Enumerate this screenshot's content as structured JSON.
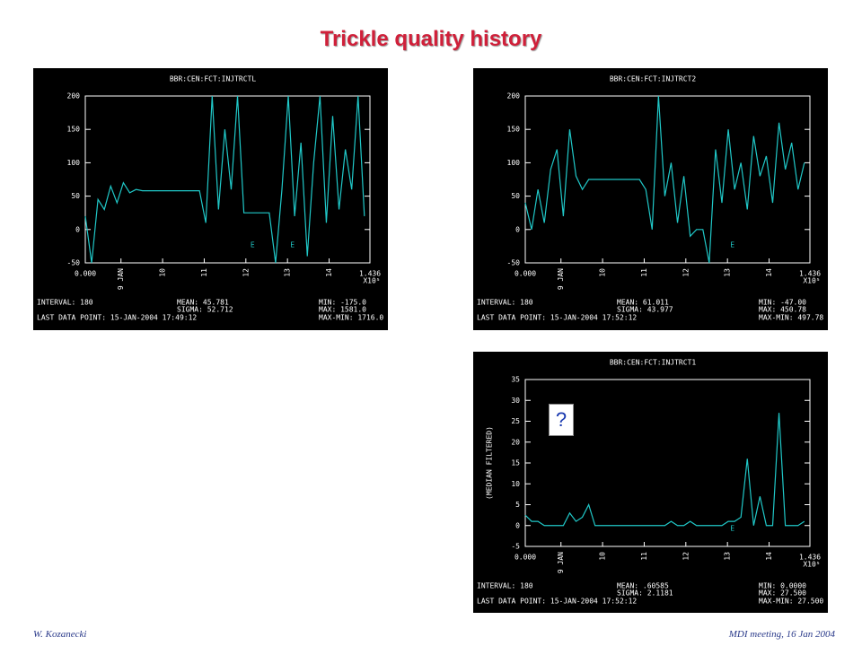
{
  "title": "Trickle quality history",
  "footer_left": "W. Kozanecki",
  "footer_right": "MDI meeting, 16 Jan 2004",
  "chart_data": [
    {
      "type": "line",
      "title": "BBR:CEN:FCT:INJTRCTL",
      "color": "#20c8c8",
      "x": [
        0,
        0.032,
        0.064,
        0.096,
        0.128,
        0.16,
        0.192,
        0.224,
        0.256,
        0.288,
        0.32,
        0.352,
        0.384,
        0.416,
        0.448,
        0.48,
        0.512,
        0.544,
        0.576,
        0.608,
        0.64,
        0.672,
        0.704,
        0.736,
        0.768,
        0.8,
        0.832,
        0.864,
        0.896,
        0.928,
        0.96,
        0.992,
        1.024,
        1.056,
        1.088,
        1.12,
        1.152,
        1.184,
        1.216,
        1.248,
        1.28,
        1.312,
        1.344,
        1.376,
        1.408
      ],
      "values": [
        20,
        -50,
        45,
        30,
        65,
        40,
        70,
        55,
        60,
        58,
        58,
        58,
        58,
        58,
        58,
        58,
        58,
        58,
        58,
        10,
        200,
        30,
        150,
        60,
        200,
        25,
        25,
        25,
        25,
        25,
        -50,
        60,
        200,
        20,
        130,
        -40,
        100,
        200,
        10,
        170,
        30,
        120,
        60,
        200,
        20
      ],
      "xlim": [
        0,
        1.436
      ],
      "ylim": [
        -50,
        200
      ],
      "yticks": [
        -50,
        0,
        50,
        100,
        150,
        200
      ],
      "xticks": [
        {
          "value": 0,
          "label": "0.000"
        },
        {
          "value": 0.18,
          "label": "9 JAN"
        },
        {
          "value": 0.39,
          "label": "10"
        },
        {
          "value": 0.6,
          "label": "11"
        },
        {
          "value": 0.81,
          "label": "12"
        },
        {
          "value": 1.02,
          "label": "13"
        },
        {
          "value": 1.23,
          "label": "14"
        },
        {
          "value": 1.436,
          "label": "1.436"
        }
      ],
      "x_exponent_label": "X10⁵",
      "annotations": [
        "E",
        "E"
      ],
      "stats": [
        "INTERVAL:   180",
        "MEAN: 45.781",
        "MIN: -175.0",
        "SIGMA: 52.712",
        "MAX: 1581.0",
        "LAST DATA POINT:   15-JAN-2004 17:49:12",
        "MAX-MIN: 1716.0"
      ]
    },
    {
      "type": "line",
      "title": "BBR:CEN:FCT:INJTRCT2",
      "color": "#20c8c8",
      "x": [
        0,
        0.032,
        0.064,
        0.096,
        0.128,
        0.16,
        0.192,
        0.224,
        0.256,
        0.288,
        0.32,
        0.352,
        0.384,
        0.416,
        0.448,
        0.48,
        0.512,
        0.544,
        0.576,
        0.608,
        0.64,
        0.672,
        0.704,
        0.736,
        0.768,
        0.8,
        0.832,
        0.864,
        0.896,
        0.928,
        0.96,
        0.992,
        1.024,
        1.056,
        1.088,
        1.12,
        1.152,
        1.184,
        1.216,
        1.248,
        1.28,
        1.312,
        1.344,
        1.376,
        1.408
      ],
      "values": [
        40,
        0,
        60,
        10,
        90,
        120,
        20,
        150,
        80,
        60,
        75,
        75,
        75,
        75,
        75,
        75,
        75,
        75,
        75,
        60,
        0,
        200,
        50,
        100,
        10,
        80,
        -10,
        0,
        0,
        -50,
        120,
        40,
        150,
        60,
        100,
        30,
        140,
        80,
        110,
        40,
        160,
        90,
        130,
        60,
        100
      ],
      "xlim": [
        0,
        1.436
      ],
      "ylim": [
        -50,
        200
      ],
      "yticks": [
        -50,
        0,
        50,
        100,
        150,
        200
      ],
      "xticks": [
        {
          "value": 0,
          "label": "0.000"
        },
        {
          "value": 0.18,
          "label": "9 JAN"
        },
        {
          "value": 0.39,
          "label": "10"
        },
        {
          "value": 0.6,
          "label": "11"
        },
        {
          "value": 0.81,
          "label": "12"
        },
        {
          "value": 1.02,
          "label": "13"
        },
        {
          "value": 1.23,
          "label": "14"
        },
        {
          "value": 1.436,
          "label": "1.436"
        }
      ],
      "x_exponent_label": "X10⁵",
      "annotations": [
        "E"
      ],
      "stats": [
        "INTERVAL:   180",
        "MEAN: 61.011",
        "MIN: -47.00",
        "SIGMA: 43.977",
        "MAX: 450.78",
        "LAST DATA POINT:   15-JAN-2004 17:52:12",
        "MAX-MIN: 497.78"
      ]
    },
    {
      "type": "line",
      "title": "BBR:CEN:FCT:INJTRCT1",
      "ylabel": "(MEDIAN FILTERED)",
      "color": "#20c8c8",
      "x": [
        0,
        0.032,
        0.064,
        0.096,
        0.128,
        0.16,
        0.192,
        0.224,
        0.256,
        0.288,
        0.32,
        0.352,
        0.384,
        0.416,
        0.448,
        0.48,
        0.512,
        0.544,
        0.576,
        0.608,
        0.64,
        0.672,
        0.704,
        0.736,
        0.768,
        0.8,
        0.832,
        0.864,
        0.896,
        0.928,
        0.96,
        0.992,
        1.024,
        1.056,
        1.088,
        1.12,
        1.152,
        1.184,
        1.216,
        1.248,
        1.28,
        1.312,
        1.344,
        1.376,
        1.408
      ],
      "values": [
        2.5,
        1,
        1,
        0,
        0,
        0,
        0,
        3,
        1,
        2,
        5,
        0,
        0,
        0,
        0,
        0,
        0,
        0,
        0,
        0,
        0,
        0,
        0,
        1,
        0,
        0,
        1,
        0,
        0,
        0,
        0,
        0,
        1,
        1,
        2,
        16,
        0,
        7,
        0,
        0,
        27,
        0,
        0,
        0,
        1
      ],
      "xlim": [
        0,
        1.436
      ],
      "ylim": [
        -5,
        35
      ],
      "yticks": [
        -5,
        0,
        5,
        10,
        15,
        20,
        25,
        30,
        35
      ],
      "xticks": [
        {
          "value": 0,
          "label": "0.000"
        },
        {
          "value": 0.18,
          "label": "9 JAN"
        },
        {
          "value": 0.39,
          "label": "10"
        },
        {
          "value": 0.6,
          "label": "11"
        },
        {
          "value": 0.81,
          "label": "12"
        },
        {
          "value": 1.02,
          "label": "13"
        },
        {
          "value": 1.23,
          "label": "14"
        },
        {
          "value": 1.436,
          "label": "1.436"
        }
      ],
      "x_exponent_label": "X10⁵",
      "annotations": [
        "E",
        "?"
      ],
      "stats": [
        "INTERVAL:   180",
        "MEAN: .60585",
        "MIN: 0.0000",
        "SIGMA: 2.1181",
        "MAX: 27.500",
        "LAST DATA POINT:   15-JAN-2004 17:52:12",
        "MAX-MIN: 27.500"
      ]
    }
  ]
}
